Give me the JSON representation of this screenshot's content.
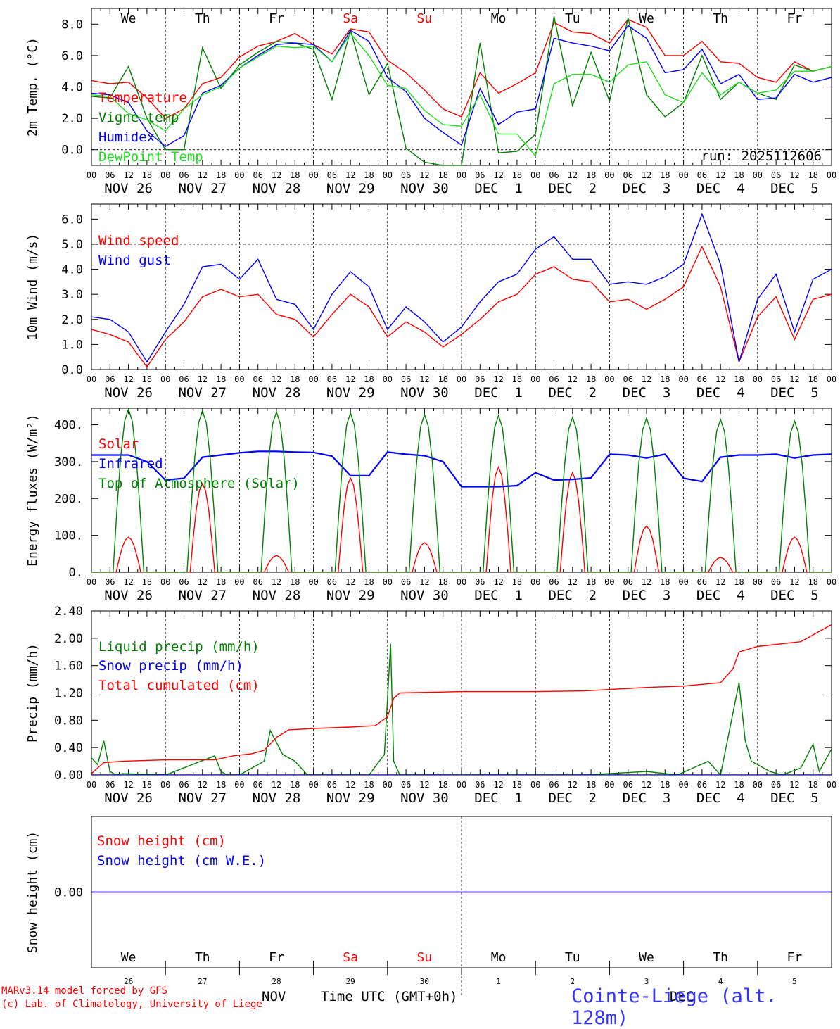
{
  "colors": {
    "red": "#ff0000",
    "dark_green": "#008000",
    "light_green": "#22dd22",
    "blue": "#0000ff",
    "black": "#000000",
    "station_blue": "#3333ff"
  },
  "days": [
    "We",
    "Th",
    "Fr",
    "Sa",
    "Su",
    "Mo",
    "Tu",
    "We",
    "Th",
    "Fr"
  ],
  "weekend_days": [
    3,
    4
  ],
  "dates": [
    "NOV 26",
    "NOV 27",
    "NOV 28",
    "NOV 29",
    "NOV 30",
    "DEC  1",
    "DEC  2",
    "DEC  3",
    "DEC  4",
    "DEC  5"
  ],
  "day_numbers": [
    "26",
    "27",
    "28",
    "29",
    "30",
    "1",
    "2",
    "3",
    "4",
    "5"
  ],
  "hour_ticks": [
    "00",
    "06",
    "12",
    "18"
  ],
  "hour_ticks_end": "00",
  "run_label": "run: 2025112606",
  "month_labels": {
    "nov": "NOV",
    "dec": "DEC"
  },
  "footer": {
    "model": "MARv3.14 model forced by GFS",
    "credit": "(c) Lab. of Climatology, University of Liege",
    "time_axis": "Time UTC (GMT+0h)",
    "station": "Cointe-Liege (alt. 128m)"
  },
  "chart_data": [
    {
      "type": "line",
      "title": "",
      "ylabel": "2m Temp. (°C)",
      "ylim": [
        -1.0,
        9.0
      ],
      "yticks": [
        "0.0",
        "2.0",
        "4.0",
        "6.0",
        "8.0"
      ],
      "yticks_values": [
        0,
        2,
        4,
        6,
        8
      ],
      "dashed_y": 0,
      "x_unit": "hours from NOV 26 00 UTC",
      "series": [
        {
          "name": "Temperature",
          "color": "red",
          "x": [
            0,
            6,
            12,
            18,
            24,
            30,
            36,
            42,
            48,
            54,
            60,
            66,
            72,
            78,
            84,
            90,
            96,
            102,
            108,
            114,
            120,
            126,
            132,
            138,
            144,
            150,
            156,
            162,
            168,
            174,
            180,
            186,
            192,
            198,
            204,
            210,
            216,
            222,
            228,
            234,
            240
          ],
          "values": [
            4.4,
            4.2,
            4.3,
            3.3,
            2.0,
            2.6,
            4.2,
            4.6,
            5.9,
            6.6,
            6.9,
            7.4,
            6.7,
            6.1,
            7.7,
            7.5,
            5.7,
            4.9,
            3.8,
            2.6,
            2.1,
            4.9,
            3.6,
            4.2,
            4.9,
            8.1,
            7.5,
            7.4,
            6.8,
            8.3,
            7.8,
            6.0,
            6.0,
            6.9,
            5.6,
            5.5,
            4.6,
            4.3,
            5.6,
            5.0,
            5.3
          ]
        },
        {
          "name": "Vigne temp",
          "color": "dark_green",
          "x": [
            0,
            6,
            12,
            18,
            24,
            30,
            36,
            42,
            48,
            54,
            60,
            66,
            72,
            78,
            84,
            90,
            96,
            102,
            108,
            114,
            120,
            126,
            132,
            138,
            144,
            150,
            156,
            162,
            168,
            174,
            180,
            186,
            192,
            198,
            204,
            210,
            216,
            222,
            228,
            234,
            240
          ],
          "values": [
            3.4,
            3.3,
            5.3,
            2.0,
            0.0,
            0.0,
            6.5,
            3.9,
            5.4,
            6.2,
            6.9,
            6.8,
            6.4,
            3.2,
            7.6,
            3.5,
            5.5,
            0.1,
            -0.8,
            -1.0,
            -1.0,
            6.8,
            -0.2,
            -0.1,
            1.0,
            8.5,
            2.8,
            6.2,
            3.1,
            8.4,
            3.5,
            2.1,
            3.0,
            6.0,
            3.2,
            4.3,
            3.6,
            3.2,
            5.4,
            5.0,
            5.3
          ]
        },
        {
          "name": "Humidex",
          "color": "blue",
          "x": [
            0,
            6,
            12,
            18,
            24,
            30,
            36,
            42,
            48,
            54,
            60,
            66,
            72,
            78,
            84,
            90,
            96,
            102,
            108,
            114,
            120,
            126,
            132,
            138,
            144,
            150,
            156,
            162,
            168,
            174,
            180,
            186,
            192,
            198,
            204,
            210,
            216,
            222,
            228,
            234,
            240
          ],
          "values": [
            3.6,
            3.5,
            3.0,
            1.2,
            0.2,
            0.9,
            3.6,
            4.1,
            5.2,
            6.0,
            6.7,
            6.8,
            6.7,
            5.6,
            7.6,
            6.9,
            4.6,
            3.7,
            2.0,
            1.1,
            0.3,
            3.9,
            1.6,
            2.4,
            2.6,
            7.1,
            6.8,
            6.6,
            6.3,
            7.9,
            7.1,
            4.9,
            5.1,
            6.4,
            4.2,
            4.8,
            3.2,
            3.3,
            4.8,
            4.3,
            4.6
          ]
        },
        {
          "name": "DewPoint Temp",
          "color": "light_green",
          "x": [
            0,
            6,
            12,
            18,
            24,
            30,
            36,
            42,
            48,
            54,
            60,
            66,
            72,
            78,
            84,
            90,
            96,
            102,
            108,
            114,
            120,
            126,
            132,
            138,
            144,
            150,
            156,
            162,
            168,
            174,
            180,
            186,
            192,
            198,
            204,
            210,
            216,
            222,
            228,
            234,
            240
          ],
          "values": [
            3.5,
            3.4,
            2.3,
            1.9,
            1.2,
            2.6,
            3.5,
            4.0,
            5.2,
            5.9,
            6.6,
            6.5,
            6.6,
            5.6,
            7.4,
            6.0,
            4.1,
            3.9,
            2.5,
            1.6,
            1.5,
            3.5,
            1.0,
            1.0,
            -0.4,
            4.2,
            4.8,
            4.8,
            4.3,
            5.4,
            5.6,
            3.5,
            3.0,
            4.9,
            3.5,
            4.3,
            3.6,
            3.8,
            5.0,
            5.0,
            5.3
          ]
        }
      ]
    },
    {
      "type": "line",
      "ylabel": "10m Wind (m/s)",
      "ylim": [
        0.0,
        6.6
      ],
      "yticks": [
        "0.0",
        "1.0",
        "2.0",
        "3.0",
        "4.0",
        "5.0",
        "6.0"
      ],
      "yticks_values": [
        0,
        1,
        2,
        3,
        4,
        5,
        6
      ],
      "dashed_y": 5,
      "x_unit": "hours from NOV 26 00 UTC",
      "series": [
        {
          "name": "Wind speed",
          "color": "red",
          "x": [
            0,
            6,
            12,
            18,
            24,
            30,
            36,
            42,
            48,
            54,
            60,
            66,
            72,
            78,
            84,
            90,
            96,
            102,
            108,
            114,
            120,
            126,
            132,
            138,
            144,
            150,
            156,
            162,
            168,
            174,
            180,
            186,
            192,
            198,
            204,
            210,
            216,
            222,
            228,
            234,
            240
          ],
          "values": [
            1.6,
            1.4,
            1.1,
            0.1,
            1.2,
            1.9,
            2.9,
            3.2,
            2.9,
            3.0,
            2.2,
            2.0,
            1.3,
            2.2,
            3.0,
            2.5,
            1.3,
            1.9,
            1.5,
            0.9,
            1.4,
            2.0,
            2.7,
            3.0,
            3.8,
            4.1,
            3.6,
            3.5,
            2.7,
            2.8,
            2.4,
            2.8,
            3.3,
            4.9,
            3.3,
            0.3,
            2.1,
            2.9,
            1.2,
            2.8,
            3.0
          ]
        },
        {
          "name": "Wind gust",
          "color": "blue",
          "x": [
            0,
            6,
            12,
            18,
            24,
            30,
            36,
            42,
            48,
            54,
            60,
            66,
            72,
            78,
            84,
            90,
            96,
            102,
            108,
            114,
            120,
            126,
            132,
            138,
            144,
            150,
            156,
            162,
            168,
            174,
            180,
            186,
            192,
            198,
            204,
            210,
            216,
            222,
            228,
            234,
            240
          ],
          "values": [
            2.1,
            2.0,
            1.5,
            0.3,
            1.5,
            2.6,
            4.1,
            4.2,
            3.6,
            4.4,
            2.8,
            2.6,
            1.6,
            3.0,
            3.9,
            3.3,
            1.6,
            2.5,
            1.9,
            1.1,
            1.7,
            2.7,
            3.5,
            3.8,
            4.8,
            5.3,
            4.4,
            4.4,
            3.4,
            3.5,
            3.4,
            3.7,
            4.2,
            6.2,
            4.2,
            0.3,
            2.8,
            3.8,
            1.5,
            3.6,
            4.0
          ]
        }
      ]
    },
    {
      "type": "line",
      "ylabel": "Energy fluxes (W/m²)",
      "ylim": [
        0,
        445
      ],
      "yticks": [
        "0.",
        "100.",
        "200.",
        "300.",
        "400."
      ],
      "yticks_values": [
        0,
        100,
        200,
        300,
        400
      ],
      "x_unit": "hours from NOV 26 00 UTC",
      "series": [
        {
          "name": "Solar",
          "color": "red",
          "peak_hours": [
            12,
            36,
            60,
            84,
            108,
            132,
            156,
            180,
            204,
            228
          ],
          "peaks": [
            95,
            240,
            45,
            255,
            80,
            285,
            270,
            125,
            40,
            95
          ]
        },
        {
          "name": "Infrared",
          "color": "blue",
          "x": [
            0,
            6,
            12,
            18,
            24,
            30,
            36,
            42,
            48,
            54,
            60,
            66,
            72,
            78,
            84,
            90,
            96,
            102,
            108,
            114,
            120,
            126,
            132,
            138,
            144,
            150,
            156,
            162,
            168,
            174,
            180,
            186,
            192,
            198,
            204,
            210,
            216,
            222,
            228,
            234,
            240
          ],
          "values": [
            318,
            318,
            318,
            300,
            250,
            255,
            312,
            318,
            324,
            328,
            328,
            326,
            325,
            315,
            262,
            262,
            326,
            320,
            316,
            300,
            232,
            232,
            232,
            235,
            270,
            250,
            252,
            256,
            320,
            318,
            310,
            320,
            255,
            246,
            312,
            318,
            318,
            320,
            310,
            318,
            320
          ]
        },
        {
          "name": "Top of Atmosphere (Solar)",
          "color": "dark_green",
          "peak_hours": [
            12,
            36,
            60,
            84,
            108,
            132,
            156,
            180,
            204,
            228
          ],
          "peaks": [
            443,
            438,
            435,
            432,
            428,
            425,
            420,
            418,
            414,
            410
          ]
        }
      ]
    },
    {
      "type": "line",
      "ylabel": "Precip (mm/h)",
      "ylim": [
        0.0,
        2.4
      ],
      "yticks": [
        "0.00",
        "0.40",
        "0.80",
        "1.20",
        "1.60",
        "2.00",
        "2.40"
      ],
      "yticks_values": [
        0,
        0.4,
        0.8,
        1.2,
        1.6,
        2.0,
        2.4
      ],
      "x_unit": "hours from NOV 26 00 UTC",
      "series": [
        {
          "name": "Liquid precip (mm/h)",
          "color": "dark_green",
          "x": [
            0,
            2,
            4,
            6,
            8,
            10,
            24,
            40,
            42,
            44,
            48,
            56,
            58,
            62,
            66,
            70,
            90,
            95,
            97,
            98,
            100,
            120,
            160,
            180,
            190,
            200,
            204,
            210,
            212,
            214,
            216,
            220,
            224,
            230,
            234,
            236,
            240
          ],
          "values": [
            0.25,
            0.15,
            0.5,
            0.05,
            0.0,
            0.02,
            0.0,
            0.28,
            0.05,
            0.0,
            0.0,
            0.2,
            0.65,
            0.3,
            0.2,
            0.0,
            0.0,
            0.3,
            1.92,
            0.2,
            0.0,
            0.0,
            0.0,
            0.05,
            0.0,
            0.2,
            0.0,
            1.35,
            0.5,
            0.2,
            0.15,
            0.05,
            0.0,
            0.1,
            0.45,
            0.05,
            0.38
          ]
        },
        {
          "name": "Snow precip (mm/h)",
          "color": "blue",
          "x": [
            0,
            240
          ],
          "values": [
            0.0,
            0.0
          ]
        },
        {
          "name": "Total cumulated (cm)",
          "color": "red",
          "x": [
            0,
            4,
            10,
            24,
            40,
            46,
            52,
            56,
            60,
            64,
            72,
            84,
            92,
            96,
            98,
            100,
            120,
            144,
            160,
            180,
            192,
            204,
            208,
            210,
            216,
            230,
            240
          ],
          "values": [
            0.02,
            0.18,
            0.2,
            0.22,
            0.22,
            0.28,
            0.31,
            0.36,
            0.55,
            0.66,
            0.68,
            0.7,
            0.72,
            0.85,
            1.12,
            1.2,
            1.22,
            1.22,
            1.23,
            1.28,
            1.3,
            1.35,
            1.55,
            1.8,
            1.88,
            1.95,
            2.2
          ]
        }
      ]
    },
    {
      "type": "line",
      "ylabel": "Snow height (cm)",
      "ylim": [
        -1,
        1
      ],
      "yticks": [
        "0.00"
      ],
      "yticks_values": [
        0
      ],
      "x_unit": "hours from NOV 26 00 UTC",
      "series": [
        {
          "name": "Snow height (cm)",
          "color": "red",
          "x": [
            0,
            240
          ],
          "values": [
            0,
            0
          ]
        },
        {
          "name": "Snow height (cm W.E.)",
          "color": "blue",
          "x": [
            0,
            240
          ],
          "values": [
            0,
            0
          ]
        }
      ]
    }
  ]
}
